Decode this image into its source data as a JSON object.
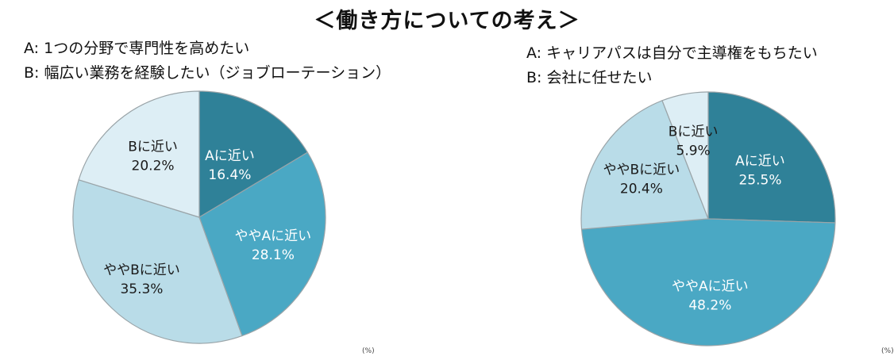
{
  "title": "＜働き方についての考え＞",
  "colors": {
    "A": "#2f8198",
    "slightA": "#4aa8c4",
    "slightB": "#b9dce8",
    "B": "#ddeef5",
    "border": "#9aa4a8"
  },
  "left": {
    "legend_a": "A: 1つの分野で専門性を高めたい",
    "legend_b": "B: 幅広い業務を経験したい（ジョブローテーション）",
    "footnote": "(%)"
  },
  "right": {
    "legend_a": "A: キャリアパスは自分で主導権をもちたい",
    "legend_b": "B: 会社に任せたい",
    "footnote": "(%)"
  },
  "chart_data": [
    {
      "type": "pie",
      "title": "",
      "series": [
        {
          "name": "Aに近い",
          "value": 16.4,
          "label": "16.4%",
          "color_key": "A"
        },
        {
          "name": "ややAに近い",
          "value": 28.1,
          "label": "28.1%",
          "color_key": "slightA"
        },
        {
          "name": "ややBに近い",
          "value": 35.3,
          "label": "35.3%",
          "color_key": "slightB"
        },
        {
          "name": "Bに近い",
          "value": 20.2,
          "label": "20.2%",
          "color_key": "B"
        }
      ]
    },
    {
      "type": "pie",
      "title": "",
      "series": [
        {
          "name": "Aに近い",
          "value": 25.5,
          "label": "25.5%",
          "color_key": "A"
        },
        {
          "name": "ややAに近い",
          "value": 48.2,
          "label": "48.2%",
          "color_key": "slightA"
        },
        {
          "name": "ややBに近い",
          "value": 20.4,
          "label": "20.4%",
          "color_key": "slightB"
        },
        {
          "name": "Bに近い",
          "value": 5.9,
          "label": "5.9%",
          "color_key": "B"
        }
      ]
    }
  ]
}
